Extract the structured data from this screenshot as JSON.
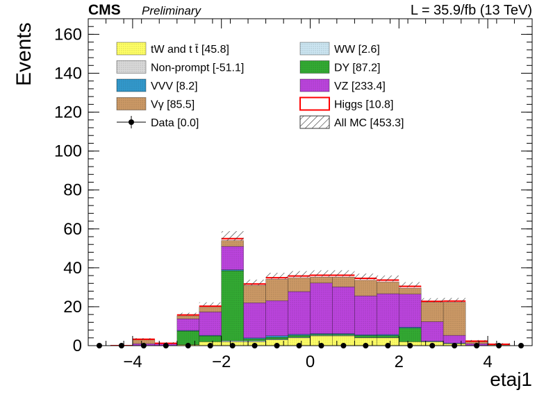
{
  "header": {
    "cms": "CMS",
    "preliminary": "Preliminary",
    "lumi": "L = 35.9/fb (13 TeV)"
  },
  "chart_data": {
    "type": "bar",
    "stacked": true,
    "xlabel": "etaj1",
    "ylabel": "Events",
    "xlim": [
      -5.0,
      5.0
    ],
    "ylim": [
      0,
      168
    ],
    "xticks": [
      -4,
      -2,
      0,
      2,
      4
    ],
    "yticks": [
      0,
      20,
      40,
      60,
      80,
      100,
      120,
      140,
      160
    ],
    "grid": false,
    "legend_position": "top-left, two columns",
    "bin_edges": [
      -4.5,
      -4.0,
      -3.5,
      -3.0,
      -2.5,
      -2.0,
      -1.5,
      -1.0,
      -0.5,
      0.0,
      0.5,
      1.0,
      1.5,
      2.0,
      2.5,
      3.0,
      3.5,
      4.0,
      4.5
    ],
    "series": [
      {
        "key": "ttbar",
        "name": "tW and t t̄ [45.8]",
        "color": "#ffff66",
        "values": [
          0,
          0,
          0,
          0.5,
          2,
          2,
          2,
          3,
          4,
          5,
          5,
          4,
          4,
          2,
          2,
          1,
          0,
          0
        ]
      },
      {
        "key": "ww",
        "name": "WW [2.6]",
        "color": "#cce6f2",
        "values": [
          0,
          0,
          0,
          0,
          0,
          0.5,
          0.5,
          0.3,
          0.3,
          0.3,
          0.3,
          0.2,
          0.2,
          0,
          0,
          0,
          0,
          0
        ]
      },
      {
        "key": "nonprompt",
        "name": "Non-prompt [-51.1]",
        "color": "#d9d9d9",
        "values": [
          0,
          0,
          0,
          0,
          0,
          0,
          0,
          0,
          0,
          0,
          0,
          0,
          0,
          0,
          0,
          0,
          0,
          0
        ]
      },
      {
        "key": "dy",
        "name": "DY [87.2]",
        "color": "#33aa33",
        "values": [
          0,
          0,
          0,
          7,
          3,
          36,
          1,
          1,
          1,
          0.5,
          0.5,
          1,
          1,
          7,
          0,
          0,
          0,
          0
        ]
      },
      {
        "key": "vvv",
        "name": "VVV [8.2]",
        "color": "#3399cc",
        "values": [
          0,
          0,
          0,
          0.3,
          0.3,
          0.5,
          0.5,
          0.8,
          0.5,
          0.4,
          0.4,
          0.4,
          0.5,
          0.5,
          0.3,
          0.3,
          0,
          0
        ]
      },
      {
        "key": "vz",
        "name": "VZ [233.4]",
        "color": "#bb44dd",
        "values": [
          0,
          1,
          1,
          6,
          12,
          12,
          18,
          18,
          22,
          26,
          24,
          20,
          21,
          17,
          10,
          4,
          1,
          0
        ]
      },
      {
        "key": "vgamma",
        "name": "Vγ [85.5]",
        "color": "#cc9966",
        "values": [
          0,
          2,
          0,
          1.5,
          2.5,
          3,
          9,
          11,
          7,
          3,
          5,
          8,
          6,
          3,
          10,
          17,
          1,
          0.5
        ]
      },
      {
        "key": "higgs",
        "name": "Higgs [10.8]",
        "color": "#ff0000",
        "values": [
          0,
          0.3,
          0.2,
          0.5,
          0.5,
          1,
          0.7,
          0.8,
          1,
          1,
          1,
          1,
          1,
          1,
          0.5,
          0.6,
          0.3,
          0.2
        ]
      }
    ],
    "all_mc": {
      "name": "All MC [453.3]",
      "values": [
        0,
        3.3,
        1.2,
        15.8,
        20.8,
        55,
        31.7,
        35,
        35.8,
        36.2,
        36.2,
        34.6,
        33.7,
        30.5,
        22.8,
        22.9,
        2.3,
        0.7
      ]
    },
    "data": {
      "name": "Data [0.0]",
      "x": [
        -4.75,
        -4.25,
        -3.75,
        -3.25,
        -2.75,
        -2.25,
        -1.75,
        -1.25,
        -0.75,
        -0.25,
        0.25,
        0.75,
        1.25,
        1.75,
        2.25,
        2.75,
        3.25,
        3.75,
        4.25,
        4.75
      ],
      "y": [
        0,
        0,
        0,
        0,
        0,
        0,
        0,
        0,
        0,
        0,
        0,
        0,
        0,
        0,
        0,
        0,
        0,
        0,
        0,
        0
      ]
    },
    "legend": [
      {
        "label": "tW and t t̄ [45.8]",
        "kind": "fill",
        "color": "#ffff66"
      },
      {
        "label": "WW [2.6]",
        "kind": "fill",
        "color": "#cce6f2"
      },
      {
        "label": "Non-prompt [-51.1]",
        "kind": "fill",
        "color": "#d9d9d9"
      },
      {
        "label": "DY [87.2]",
        "kind": "fill",
        "color": "#33aa33"
      },
      {
        "label": "VVV [8.2]",
        "kind": "fill",
        "color": "#3399cc"
      },
      {
        "label": "VZ [233.4]",
        "kind": "fill",
        "color": "#bb44dd"
      },
      {
        "label": "Vγ [85.5]",
        "kind": "fill",
        "color": "#cc9966"
      },
      {
        "label": "Higgs [10.8]",
        "kind": "line",
        "color": "#ff0000"
      },
      {
        "label": "Data [0.0]",
        "kind": "marker",
        "color": "#000000"
      },
      {
        "label": "All MC [453.3]",
        "kind": "hatch",
        "color": "#333333"
      }
    ]
  }
}
